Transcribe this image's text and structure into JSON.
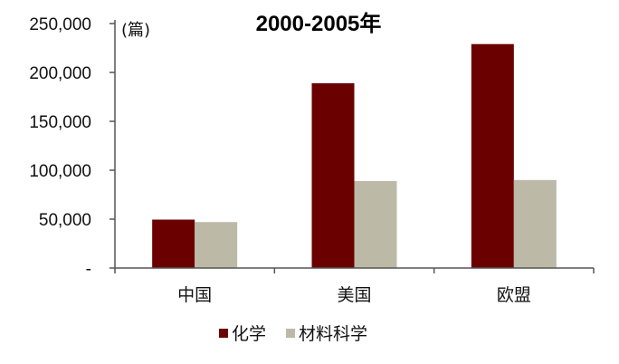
{
  "chart_data": {
    "type": "bar",
    "title": "2000-2005年",
    "unit_label": "(篇)",
    "categories": [
      "中国",
      "美国",
      "欧盟"
    ],
    "series": [
      {
        "name": "化学",
        "color": "#6b0000",
        "values": [
          49500,
          189000,
          229000
        ]
      },
      {
        "name": "材料科学",
        "color": "#bcb9a7",
        "values": [
          47000,
          89000,
          90000
        ]
      }
    ],
    "ylim": [
      0,
      250000
    ],
    "yticks": [
      0,
      50000,
      100000,
      150000,
      200000,
      250000
    ],
    "ytick_labels": [
      "-",
      "50,000",
      "100,000",
      "150,000",
      "200,000",
      "250,000"
    ],
    "grid": false,
    "legend_position": "bottom"
  }
}
